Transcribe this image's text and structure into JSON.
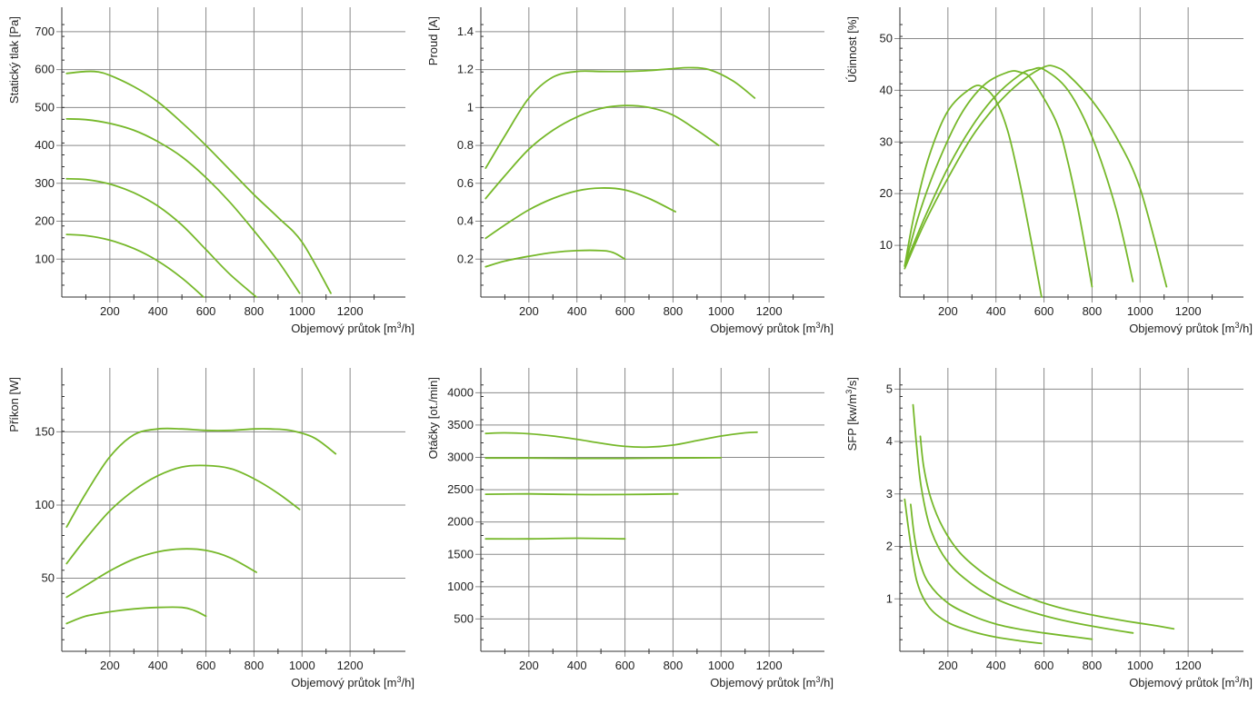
{
  "line_color": "#76b82a",
  "chart_data": [
    {
      "type": "line",
      "xlabel": "Objemový průtok [m³/h]",
      "xlabel_main": "Objemový průtok [m",
      "xlabel_sup": "3",
      "xlabel_tail": "/h]",
      "ylabel": "Statický tlak [Pa]",
      "xlim": [
        0,
        1400
      ],
      "ylim": [
        0,
        750
      ],
      "x_ticks": [
        200,
        400,
        600,
        800,
        1000,
        1200
      ],
      "y_ticks": [
        100,
        200,
        300,
        400,
        500,
        600,
        700
      ],
      "grid": true,
      "series": [
        {
          "x": [
            20,
            100,
            150,
            200,
            300,
            400,
            500,
            600,
            700,
            800,
            900,
            1000,
            1120
          ],
          "y": [
            590,
            595,
            594,
            585,
            555,
            515,
            460,
            400,
            335,
            270,
            210,
            145,
            10
          ]
        },
        {
          "x": [
            20,
            100,
            200,
            300,
            400,
            500,
            600,
            700,
            800,
            900,
            990
          ],
          "y": [
            470,
            468,
            458,
            440,
            410,
            370,
            315,
            250,
            175,
            95,
            10
          ]
        },
        {
          "x": [
            20,
            100,
            200,
            300,
            400,
            500,
            600,
            700,
            810
          ],
          "y": [
            312,
            310,
            298,
            275,
            240,
            190,
            125,
            60,
            0
          ]
        },
        {
          "x": [
            20,
            100,
            200,
            300,
            400,
            500,
            590
          ],
          "y": [
            165,
            162,
            150,
            128,
            95,
            50,
            0
          ]
        }
      ]
    },
    {
      "type": "line",
      "xlabel": "Objemový průtok [m³/h]",
      "xlabel_main": "Objemový průtok [m",
      "xlabel_sup": "3",
      "xlabel_tail": "/h]",
      "ylabel": "Proud [A]",
      "xlim": [
        0,
        1400
      ],
      "ylim": [
        0,
        1.5
      ],
      "x_ticks": [
        200,
        400,
        600,
        800,
        1000,
        1200
      ],
      "y_ticks": [
        0.2,
        0.4,
        0.6,
        0.8,
        1,
        1.2,
        1.4
      ],
      "y_tick_labels": [
        "0.2",
        "0.4",
        "0.6",
        "0.8",
        "1",
        "1.2",
        "1.4"
      ],
      "grid": true,
      "series": [
        {
          "x": [
            20,
            100,
            200,
            300,
            400,
            500,
            600,
            700,
            800,
            870,
            950,
            1050,
            1140
          ],
          "y": [
            0.68,
            0.85,
            1.05,
            1.16,
            1.19,
            1.19,
            1.19,
            1.195,
            1.205,
            1.21,
            1.2,
            1.14,
            1.05
          ]
        },
        {
          "x": [
            20,
            100,
            200,
            300,
            400,
            500,
            600,
            700,
            800,
            900,
            990
          ],
          "y": [
            0.52,
            0.64,
            0.78,
            0.88,
            0.95,
            0.995,
            1.01,
            1.0,
            0.96,
            0.88,
            0.8
          ]
        },
        {
          "x": [
            20,
            100,
            200,
            300,
            400,
            500,
            600,
            700,
            810
          ],
          "y": [
            0.31,
            0.38,
            0.46,
            0.52,
            0.56,
            0.575,
            0.565,
            0.52,
            0.45
          ]
        },
        {
          "x": [
            20,
            100,
            200,
            300,
            400,
            500,
            550,
            600
          ],
          "y": [
            0.16,
            0.19,
            0.215,
            0.235,
            0.245,
            0.245,
            0.235,
            0.2
          ]
        }
      ]
    },
    {
      "type": "line",
      "xlabel": "Objemový průtok [m³/h]",
      "xlabel_main": "Objemový průtok [m",
      "xlabel_sup": "3",
      "xlabel_tail": "/h]",
      "ylabel": "Účinnost [%]",
      "xlim": [
        0,
        1400
      ],
      "ylim": [
        0,
        55
      ],
      "x_ticks": [
        200,
        400,
        600,
        800,
        1000,
        1200
      ],
      "y_ticks": [
        10,
        20,
        30,
        40,
        50
      ],
      "grid": true,
      "series": [
        {
          "x": [
            20,
            60,
            120,
            200,
            300,
            350,
            400,
            450,
            500,
            550,
            590
          ],
          "y": [
            6,
            16,
            27,
            36,
            40.5,
            40.5,
            38,
            32,
            22,
            10,
            0
          ]
        },
        {
          "x": [
            20,
            80,
            150,
            250,
            350,
            450,
            500,
            550,
            650,
            700,
            750,
            800
          ],
          "y": [
            6,
            16,
            25,
            35,
            41,
            43.5,
            43.5,
            42,
            34,
            26,
            15,
            2
          ]
        },
        {
          "x": [
            20,
            100,
            200,
            300,
            400,
            500,
            550,
            600,
            700,
            800,
            900,
            970
          ],
          "y": [
            6,
            15,
            25,
            33,
            39,
            43,
            44,
            44,
            40,
            31,
            17,
            3
          ]
        },
        {
          "x": [
            20,
            100,
            200,
            300,
            400,
            500,
            600,
            650,
            700,
            800,
            900,
            1000,
            1110
          ],
          "y": [
            5.5,
            14,
            23,
            31,
            37,
            41.5,
            44.5,
            44.5,
            43,
            38,
            31,
            21,
            2
          ]
        }
      ]
    },
    {
      "type": "line",
      "xlabel": "Objemový průtok [m³/h]",
      "xlabel_main": "Objemový průtok [m",
      "xlabel_sup": "3",
      "xlabel_tail": "/h]",
      "ylabel": "Příkon [W]",
      "xlim": [
        0,
        1400
      ],
      "ylim": [
        0,
        190
      ],
      "x_ticks": [
        200,
        400,
        600,
        800,
        1000,
        1200
      ],
      "y_ticks": [
        50,
        100,
        150
      ],
      "grid": true,
      "series": [
        {
          "x": [
            20,
            100,
            200,
            300,
            400,
            500,
            600,
            700,
            800,
            870,
            950,
            1050,
            1140
          ],
          "y": [
            85,
            108,
            133,
            148,
            152,
            152,
            151,
            151,
            152,
            152,
            151,
            146,
            135
          ]
        },
        {
          "x": [
            20,
            100,
            200,
            300,
            400,
            500,
            600,
            700,
            800,
            900,
            990
          ],
          "y": [
            60,
            77,
            96,
            110,
            120,
            126,
            127,
            125,
            118,
            108,
            97
          ]
        },
        {
          "x": [
            20,
            100,
            200,
            300,
            400,
            500,
            600,
            700,
            810
          ],
          "y": [
            37,
            45,
            55,
            63,
            68,
            70,
            69,
            64,
            54
          ]
        },
        {
          "x": [
            20,
            100,
            200,
            300,
            400,
            500,
            550,
            600
          ],
          "y": [
            19,
            24,
            27,
            29,
            30,
            30,
            28,
            24
          ]
        }
      ]
    },
    {
      "type": "line",
      "xlabel": "Objemový průtok [m³/h]",
      "xlabel_main": "Objemový průtok [m",
      "xlabel_sup": "3",
      "xlabel_tail": "/h]",
      "ylabel": "Otáčky [ot./min]",
      "xlim": [
        0,
        1400
      ],
      "ylim": [
        0,
        4300
      ],
      "x_ticks": [
        200,
        400,
        600,
        800,
        1000,
        1200
      ],
      "y_ticks": [
        500,
        1000,
        1500,
        2000,
        2500,
        3000,
        3500,
        4000
      ],
      "grid": true,
      "series": [
        {
          "x": [
            20,
            100,
            200,
            300,
            400,
            500,
            600,
            700,
            800,
            900,
            1000,
            1100,
            1150
          ],
          "y": [
            3370,
            3380,
            3365,
            3330,
            3280,
            3220,
            3170,
            3160,
            3190,
            3260,
            3330,
            3380,
            3390
          ]
        },
        {
          "x": [
            20,
            200,
            400,
            600,
            800,
            1000
          ],
          "y": [
            2990,
            2990,
            2985,
            2985,
            2990,
            2995
          ]
        },
        {
          "x": [
            20,
            200,
            400,
            600,
            820
          ],
          "y": [
            2430,
            2435,
            2425,
            2425,
            2435
          ]
        },
        {
          "x": [
            20,
            200,
            400,
            600
          ],
          "y": [
            1740,
            1740,
            1750,
            1740
          ]
        }
      ]
    },
    {
      "type": "line",
      "xlabel": "Objemový průtok [m³/h]",
      "xlabel_main": "Objemový průtok [m",
      "xlabel_sup": "3",
      "xlabel_tail": "/h]",
      "ylabel": "SFP [kw/m³/s]",
      "ylabel_main": "SFP [kw/m",
      "ylabel_sup": "3",
      "ylabel_tail": "/s]",
      "xlim": [
        0,
        1400
      ],
      "ylim": [
        0,
        5.3
      ],
      "x_ticks": [
        200,
        400,
        600,
        800,
        1000,
        1200
      ],
      "y_ticks": [
        1,
        2,
        3,
        4,
        5
      ],
      "grid": true,
      "series": [
        {
          "x": [
            20,
            40,
            70,
            120,
            200,
            300,
            400,
            500,
            590
          ],
          "y": [
            2.9,
            2.2,
            1.35,
            0.85,
            0.55,
            0.38,
            0.27,
            0.2,
            0.15
          ]
        },
        {
          "x": [
            45,
            60,
            80,
            120,
            200,
            300,
            400,
            500,
            600,
            700,
            800
          ],
          "y": [
            2.8,
            2.2,
            1.75,
            1.3,
            0.92,
            0.68,
            0.52,
            0.42,
            0.35,
            0.29,
            0.23
          ]
        },
        {
          "x": [
            55,
            70,
            90,
            130,
            200,
            300,
            400,
            500,
            600,
            700,
            800,
            900,
            970
          ],
          "y": [
            4.7,
            3.9,
            3.1,
            2.3,
            1.7,
            1.28,
            1.0,
            0.82,
            0.68,
            0.57,
            0.48,
            0.4,
            0.35
          ]
        },
        {
          "x": [
            85,
            100,
            130,
            180,
            250,
            350,
            450,
            550,
            650,
            750,
            850,
            950,
            1050,
            1140
          ],
          "y": [
            4.1,
            3.5,
            2.9,
            2.35,
            1.88,
            1.48,
            1.2,
            1.0,
            0.85,
            0.74,
            0.65,
            0.57,
            0.5,
            0.43
          ]
        }
      ]
    }
  ]
}
